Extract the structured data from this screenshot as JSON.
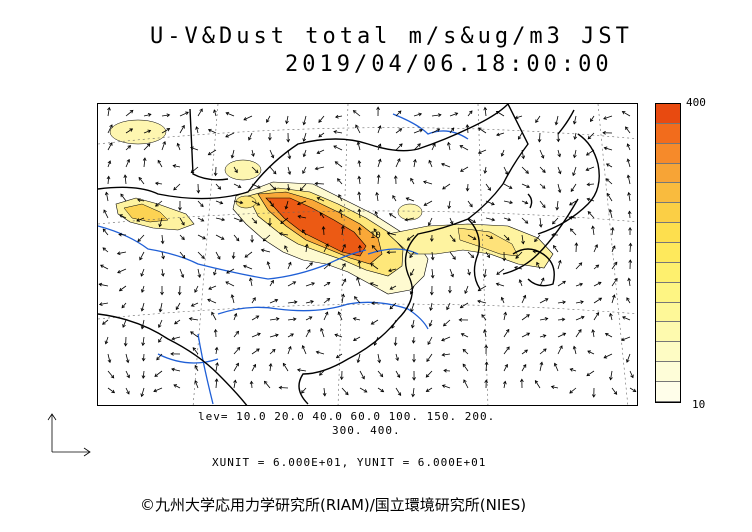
{
  "header": {
    "title": "U-V&Dust total m/s&ug/m3 JST",
    "datetime": "2019/04/06.18:00:00"
  },
  "colorbar": {
    "max_label": "400",
    "min_label": "10",
    "colors": [
      "#e84a10",
      "#f26c1c",
      "#f68a2a",
      "#f7a436",
      "#f9bb3e",
      "#fbcf45",
      "#fddf4e",
      "#fee95c",
      "#fef06e",
      "#fef583",
      "#fef898",
      "#fefaae",
      "#fefcc4",
      "#fefdd8",
      "#fffeea"
    ]
  },
  "levels": {
    "line1": "lev= 10.0 20.0 40.0 60.0 100. 150. 200.",
    "line2": "300. 400."
  },
  "units_text": "XUNIT = 6.000E+01, YUNIT = 6.000E+01",
  "copyright": "©九州大学応用力学研究所(RIAM)/国立環境研究所(NIES)",
  "map": {
    "contour_label": "10",
    "colors": {
      "coast": "#000000",
      "river": "#1f5fd6",
      "grid": "#666666"
    },
    "icons": [
      "wind-vector-arrow",
      "reference-vector-icon"
    ]
  }
}
